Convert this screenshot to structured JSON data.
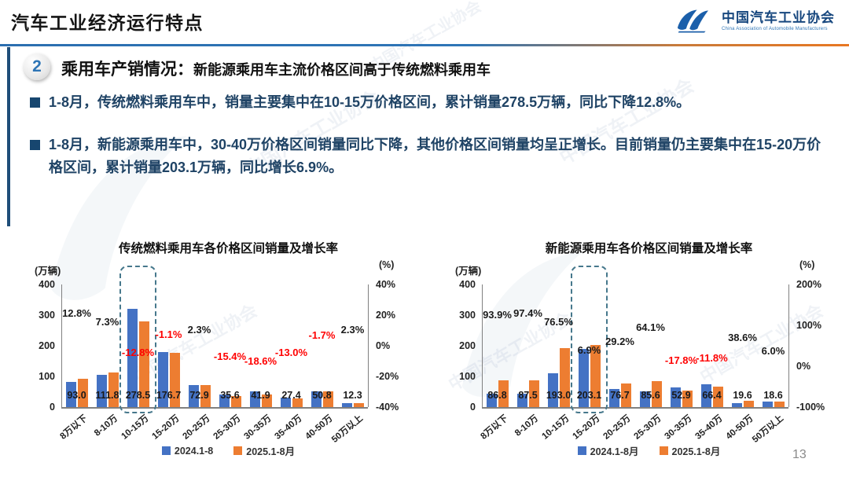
{
  "header": {
    "title": "汽车工业经济运行特点",
    "logo": {
      "org_cn": "中国汽车工业协会",
      "org_en": "China Association of Automobile Manufacturers"
    }
  },
  "section": {
    "badge": "2",
    "heading": "乘用车产销情况：",
    "subheading": "新能源乘用车主流价格区间高于传统燃料乘用车"
  },
  "bullets": [
    "1-8月，传统燃料乘用车中，销量主要集中在10-15万价格区间，累计销量278.5万辆，同比下降12.8%。",
    "1-8月，新能源乘用车中，30-40万价格区间销量同比下降，其他价格区间销量均呈正增长。目前销量仍主要集中在15-20万价格区间，累计销量203.1万辆，同比增长6.9%。"
  ],
  "page_number": "13",
  "watermark": {
    "text": "中国汽车工业协会"
  },
  "colors": {
    "bar_2024": "#4472C4",
    "bar_2025": "#ED7D31",
    "negative_label": "#FF0000",
    "positive_label": "#1a1a1a",
    "accent_blue": "#2E75B6",
    "accent_orange": "#E87722",
    "bullet_text": "#1F4365"
  },
  "chart_data": [
    {
      "type": "bar",
      "title": "传统燃料乘用车各价格区间销量及增长率",
      "unit_left": "(万辆)",
      "unit_right": "(%)",
      "categories": [
        "8万以下",
        "8-10万",
        "10-15万",
        "15-20万",
        "20-25万",
        "25-30万",
        "30-35万",
        "35-40万",
        "40-50万",
        "50万以上"
      ],
      "series": [
        {
          "name": "2024.1-8",
          "values": [
            82.4,
            104.2,
            319.4,
            178.7,
            71.3,
            42.1,
            51.5,
            31.5,
            51.7,
            12.0
          ]
        },
        {
          "name": "2025.1-8月",
          "values": [
            93.0,
            111.8,
            278.5,
            176.7,
            72.9,
            35.6,
            41.9,
            27.4,
            50.8,
            12.3
          ]
        }
      ],
      "value_labels": [
        "93.0",
        "111.8",
        "278.5",
        "176.7",
        "72.9",
        "35.6",
        "41.9",
        "27.4",
        "50.8",
        "12.3"
      ],
      "growth_pct": [
        12.8,
        7.3,
        -12.8,
        -1.1,
        2.3,
        -15.4,
        -18.6,
        -13.0,
        -1.7,
        2.3
      ],
      "growth_labels": [
        "12.8%",
        "7.3%",
        "-12.8%",
        "-1.1%",
        "2.3%",
        "-15.4%",
        "-18.6%",
        "-13.0%",
        "-1.7%",
        "2.3%"
      ],
      "left_axis": {
        "min": 0,
        "max": 400,
        "ticks": [
          "400",
          "300",
          "200",
          "100",
          "0"
        ]
      },
      "right_axis": {
        "min": -40,
        "max": 40,
        "ticks": [
          "40%",
          "20%",
          "0%",
          "-20%",
          "-40%"
        ]
      },
      "legend": [
        "2024.1-8",
        "2025.1-8月"
      ],
      "highlight_category": "10-15万",
      "highlight_index": 2
    },
    {
      "type": "bar",
      "title": "新能源乘用车各价格区间销量及增长率",
      "unit_left": "(万辆)",
      "unit_right": "(%)",
      "categories": [
        "8万以下",
        "8-10万",
        "10-15万",
        "15-20万",
        "20-25万",
        "25-30万",
        "30-35万",
        "35-40万",
        "40-50万",
        "50万以上"
      ],
      "series": [
        {
          "name": "2024.1-8月",
          "values": [
            44.8,
            44.3,
            109.3,
            190.0,
            59.4,
            52.2,
            64.4,
            75.3,
            14.1,
            17.5
          ]
        },
        {
          "name": "2025.1-8月",
          "values": [
            86.8,
            87.5,
            193.0,
            203.1,
            76.7,
            85.6,
            52.9,
            66.4,
            19.6,
            18.6
          ]
        }
      ],
      "value_labels": [
        "86.8",
        "87.5",
        "193.0",
        "203.1",
        "76.7",
        "85.6",
        "52.9",
        "66.4",
        "19.6",
        "18.6"
      ],
      "growth_pct": [
        93.9,
        97.4,
        76.5,
        6.9,
        29.2,
        64.1,
        -17.8,
        -11.8,
        38.6,
        6.0
      ],
      "growth_labels": [
        "93.9%",
        "97.4%",
        "76.5%",
        "6.9%",
        "29.2%",
        "64.1%",
        "-17.8%",
        "-11.8%",
        "38.6%",
        "6.0%"
      ],
      "left_axis": {
        "min": 0,
        "max": 400,
        "ticks": [
          "400",
          "300",
          "200",
          "100",
          "0"
        ]
      },
      "right_axis": {
        "min": -100,
        "max": 200,
        "ticks": [
          "200%",
          "100%",
          "0%",
          "-100%"
        ]
      },
      "legend": [
        "2024.1-8月",
        "2025.1-8月"
      ],
      "highlight_category": "15-20万",
      "highlight_index": 3
    }
  ]
}
